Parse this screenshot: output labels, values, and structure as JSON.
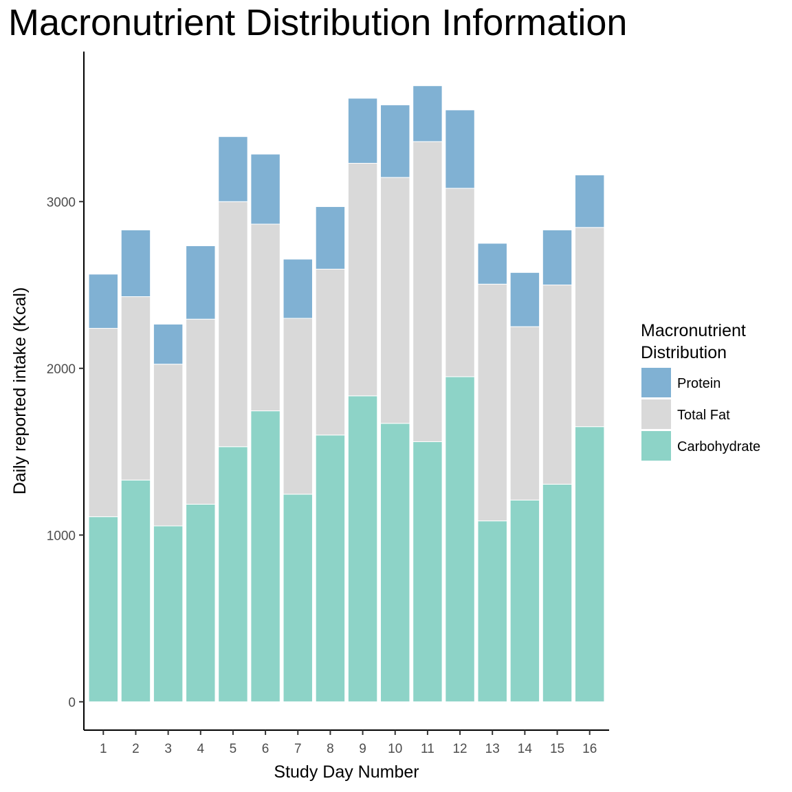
{
  "chart_data": {
    "type": "bar",
    "stacked": true,
    "title": "Macronutrient Distribution Information",
    "xlabel": "Study Day Number",
    "ylabel": "Daily reported intake (Kcal)",
    "categories": [
      "1",
      "2",
      "3",
      "4",
      "5",
      "6",
      "7",
      "8",
      "9",
      "10",
      "11",
      "12",
      "13",
      "14",
      "15",
      "16"
    ],
    "ylim": [
      -170,
      3900
    ],
    "yticks": [
      0,
      1000,
      2000,
      3000
    ],
    "grid": false,
    "legend": {
      "title_lines": [
        "Macronutrient",
        "Distribution"
      ],
      "position": "right"
    },
    "series": [
      {
        "name": "Carbohydrate",
        "color": "#8DD3C7",
        "values": [
          1110,
          1330,
          1055,
          1185,
          1530,
          1745,
          1245,
          1600,
          1835,
          1670,
          1560,
          1950,
          1085,
          1210,
          1305,
          1650
        ]
      },
      {
        "name": "Total Fat",
        "color": "#D9D9D9",
        "values": [
          1130,
          1100,
          970,
          1110,
          1470,
          1120,
          1055,
          995,
          1395,
          1475,
          1800,
          1130,
          1420,
          1040,
          1195,
          1195
        ]
      },
      {
        "name": "Protein",
        "color": "#80B1D3",
        "values": [
          325,
          400,
          240,
          440,
          390,
          420,
          355,
          375,
          390,
          435,
          335,
          470,
          245,
          325,
          330,
          315
        ]
      }
    ]
  }
}
